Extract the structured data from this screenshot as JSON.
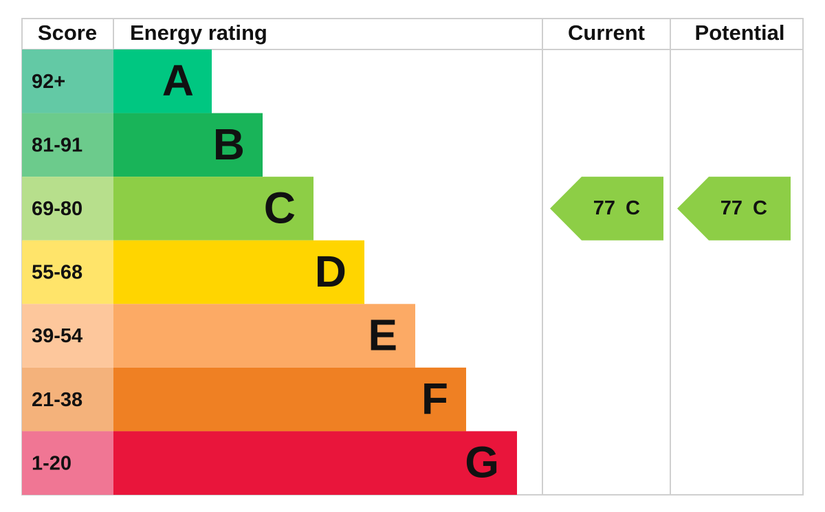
{
  "header": {
    "score": "Score",
    "rating": "Energy rating",
    "current": "Current",
    "potential": "Potential"
  },
  "rows": [
    {
      "score": "92+",
      "rating": "A"
    },
    {
      "score": "81-91",
      "rating": "B"
    },
    {
      "score": "69-80",
      "rating": "C"
    },
    {
      "score": "55-68",
      "rating": "D"
    },
    {
      "score": "39-54",
      "rating": "E"
    },
    {
      "score": "21-38",
      "rating": "F"
    },
    {
      "score": "1-20",
      "rating": "G"
    }
  ],
  "current": {
    "score": 77,
    "rating": "C"
  },
  "potential": {
    "score": 77,
    "rating": "C"
  }
}
